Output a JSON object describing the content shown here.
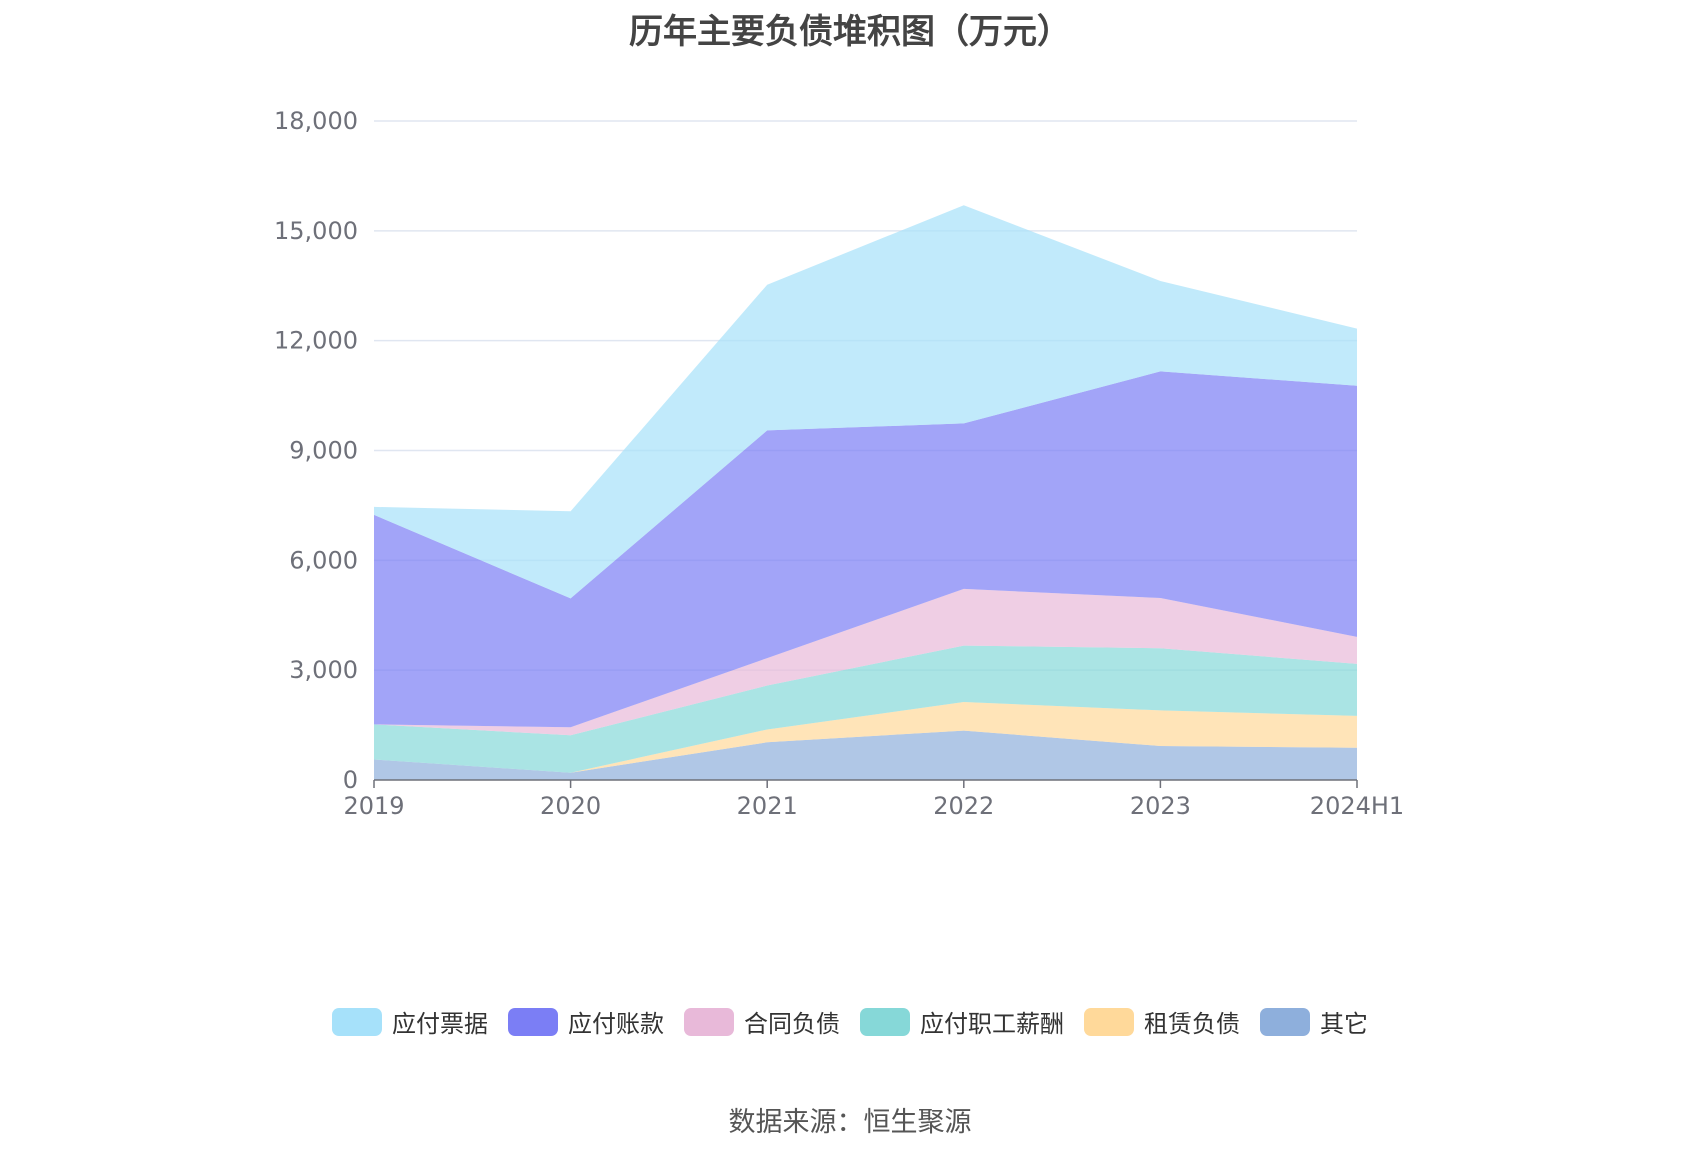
{
  "chart_data": {
    "type": "area",
    "stacked": true,
    "title": "历年主要负债堆积图（万元）",
    "categories": [
      "2019",
      "2020",
      "2021",
      "2022",
      "2023",
      "2024H1"
    ],
    "ylim": [
      0,
      18000
    ],
    "yticks": [
      0,
      3000,
      6000,
      9000,
      12000,
      15000,
      18000
    ],
    "ytick_labels": [
      "0",
      "3,000",
      "6,000",
      "9,000",
      "12,000",
      "15,000",
      "18,000"
    ],
    "grid": true,
    "legend_position": "bottom",
    "series": [
      {
        "name": "其它",
        "color": "#8eafdc",
        "values": [
          560,
          200,
          1030,
          1350,
          930,
          880
        ]
      },
      {
        "name": "租赁负债",
        "color": "#ffd99a",
        "values": [
          0,
          0,
          350,
          780,
          970,
          870
        ]
      },
      {
        "name": "应付职工薪酬",
        "color": "#86d8d8",
        "values": [
          960,
          1020,
          1200,
          1540,
          1700,
          1420
        ]
      },
      {
        "name": "合同负债",
        "color": "#e8b9d9",
        "values": [
          0,
          220,
          750,
          1550,
          1370,
          740
        ]
      },
      {
        "name": "应付账款",
        "color": "#7b7ef5",
        "values": [
          5720,
          3520,
          6220,
          4520,
          6190,
          6860
        ]
      },
      {
        "name": "应付票据",
        "color": "#a6e1fa",
        "values": [
          220,
          2380,
          3980,
          5960,
          2470,
          1560
        ]
      }
    ],
    "legend_order": [
      "应付票据",
      "应付账款",
      "合同负债",
      "应付职工薪酬",
      "租赁负债",
      "其它"
    ],
    "source": "数据来源：恒生聚源"
  }
}
